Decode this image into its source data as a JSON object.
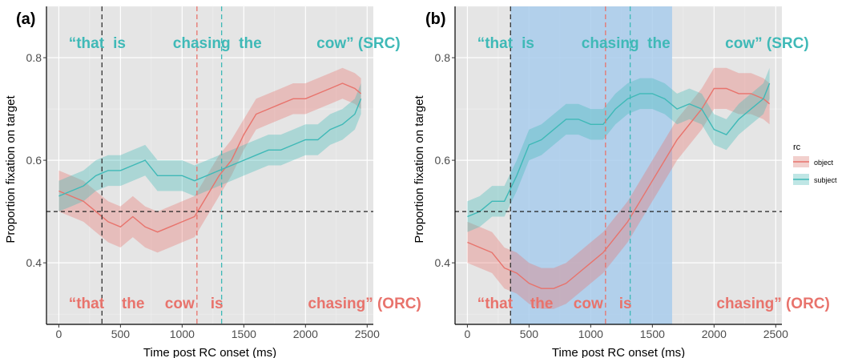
{
  "chart_data": [
    {
      "panel_label": "(a)",
      "type": "line",
      "xlabel": "Time post RC onset (ms)",
      "ylabel": "Proportion fixation on target",
      "xlim": [
        -100,
        2550
      ],
      "ylim": [
        0.28,
        0.9
      ],
      "xticks": [
        0,
        500,
        1000,
        1500,
        2000,
        2500
      ],
      "yticks": [
        0.4,
        0.6,
        0.8
      ],
      "reference_line_y": 0.5,
      "word_onsets": [
        {
          "x": 350,
          "color": "#333333"
        },
        {
          "x": 1120,
          "color": "#e8736c"
        },
        {
          "x": 1320,
          "color": "#3fb9b7"
        }
      ],
      "shaded_region": null,
      "top_words": [
        {
          "text": "“that",
          "x": 80
        },
        {
          "text": "is",
          "x": 440
        },
        {
          "text": "chasing",
          "x": 925
        },
        {
          "text": "the",
          "x": 1460
        },
        {
          "text": "cow” (SRC)",
          "x": 2090
        }
      ],
      "bottom_words": [
        {
          "text": "“that",
          "x": 80
        },
        {
          "text": "the",
          "x": 510
        },
        {
          "text": "cow",
          "x": 860
        },
        {
          "text": "is",
          "x": 1230
        },
        {
          "text": "chasing” (ORC)",
          "x": 2020
        }
      ],
      "series": [
        {
          "name": "object",
          "color": "#e8736c",
          "x": [
            0,
            100,
            200,
            300,
            400,
            500,
            600,
            700,
            800,
            900,
            1000,
            1100,
            1200,
            1300,
            1400,
            1500,
            1600,
            1700,
            1800,
            1900,
            2000,
            2100,
            2200,
            2300,
            2400,
            2450
          ],
          "y": [
            0.54,
            0.53,
            0.52,
            0.5,
            0.48,
            0.47,
            0.49,
            0.47,
            0.46,
            0.47,
            0.48,
            0.49,
            0.53,
            0.57,
            0.6,
            0.65,
            0.69,
            0.7,
            0.71,
            0.72,
            0.72,
            0.73,
            0.74,
            0.75,
            0.74,
            0.73
          ],
          "lower": [
            0.5,
            0.49,
            0.48,
            0.46,
            0.44,
            0.43,
            0.45,
            0.43,
            0.42,
            0.43,
            0.44,
            0.45,
            0.49,
            0.53,
            0.57,
            0.62,
            0.66,
            0.67,
            0.68,
            0.69,
            0.69,
            0.7,
            0.71,
            0.72,
            0.71,
            0.7
          ],
          "upper": [
            0.58,
            0.57,
            0.56,
            0.54,
            0.52,
            0.51,
            0.53,
            0.51,
            0.5,
            0.51,
            0.52,
            0.53,
            0.57,
            0.61,
            0.64,
            0.68,
            0.72,
            0.73,
            0.74,
            0.75,
            0.75,
            0.76,
            0.77,
            0.78,
            0.77,
            0.76
          ]
        },
        {
          "name": "subject",
          "color": "#3fb9b7",
          "x": [
            0,
            100,
            200,
            300,
            400,
            500,
            600,
            700,
            800,
            900,
            1000,
            1100,
            1200,
            1300,
            1400,
            1500,
            1600,
            1700,
            1800,
            1900,
            2000,
            2100,
            2200,
            2300,
            2400,
            2450
          ],
          "y": [
            0.53,
            0.54,
            0.55,
            0.57,
            0.58,
            0.58,
            0.59,
            0.6,
            0.57,
            0.57,
            0.57,
            0.56,
            0.57,
            0.58,
            0.59,
            0.6,
            0.61,
            0.62,
            0.62,
            0.63,
            0.64,
            0.64,
            0.66,
            0.67,
            0.69,
            0.72
          ],
          "lower": [
            0.5,
            0.51,
            0.52,
            0.54,
            0.55,
            0.55,
            0.56,
            0.57,
            0.54,
            0.54,
            0.54,
            0.53,
            0.54,
            0.55,
            0.56,
            0.57,
            0.58,
            0.59,
            0.59,
            0.6,
            0.61,
            0.61,
            0.63,
            0.64,
            0.66,
            0.69
          ],
          "upper": [
            0.56,
            0.57,
            0.58,
            0.6,
            0.61,
            0.61,
            0.62,
            0.63,
            0.6,
            0.6,
            0.6,
            0.59,
            0.6,
            0.61,
            0.62,
            0.63,
            0.64,
            0.65,
            0.65,
            0.66,
            0.67,
            0.67,
            0.69,
            0.7,
            0.72,
            0.75
          ]
        }
      ]
    },
    {
      "panel_label": "(b)",
      "type": "line",
      "xlabel": "Time post RC onset (ms)",
      "ylabel": "Proportion fixation on target",
      "xlim": [
        -100,
        2550
      ],
      "ylim": [
        0.28,
        0.9
      ],
      "xticks": [
        0,
        500,
        1000,
        1500,
        2000,
        2500
      ],
      "yticks": [
        0.4,
        0.6,
        0.8
      ],
      "reference_line_y": 0.5,
      "word_onsets": [
        {
          "x": 350,
          "color": "#333333"
        },
        {
          "x": 1120,
          "color": "#e8736c"
        },
        {
          "x": 1320,
          "color": "#3fb9b7"
        }
      ],
      "shaded_region": {
        "x0": 350,
        "x1": 1660,
        "color": "#a9ccec"
      },
      "top_words": [
        {
          "text": "“that",
          "x": 80
        },
        {
          "text": "is",
          "x": 440
        },
        {
          "text": "chasing",
          "x": 925
        },
        {
          "text": "the",
          "x": 1460
        },
        {
          "text": "cow” (SRC)",
          "x": 2090
        }
      ],
      "bottom_words": [
        {
          "text": "“that",
          "x": 80
        },
        {
          "text": "the",
          "x": 510
        },
        {
          "text": "cow",
          "x": 860
        },
        {
          "text": "is",
          "x": 1230
        },
        {
          "text": "chasing” (ORC)",
          "x": 2020
        }
      ],
      "series": [
        {
          "name": "object",
          "color": "#e8736c",
          "x": [
            0,
            100,
            200,
            300,
            400,
            500,
            600,
            700,
            800,
            900,
            1000,
            1100,
            1200,
            1300,
            1400,
            1500,
            1600,
            1700,
            1800,
            1900,
            2000,
            2100,
            2200,
            2300,
            2400,
            2450
          ],
          "y": [
            0.44,
            0.43,
            0.42,
            0.39,
            0.38,
            0.36,
            0.35,
            0.35,
            0.36,
            0.38,
            0.4,
            0.42,
            0.45,
            0.48,
            0.52,
            0.56,
            0.6,
            0.64,
            0.67,
            0.7,
            0.74,
            0.74,
            0.73,
            0.73,
            0.72,
            0.71
          ],
          "lower": [
            0.4,
            0.39,
            0.38,
            0.35,
            0.34,
            0.32,
            0.31,
            0.31,
            0.32,
            0.34,
            0.36,
            0.38,
            0.41,
            0.44,
            0.48,
            0.52,
            0.56,
            0.6,
            0.63,
            0.66,
            0.7,
            0.7,
            0.69,
            0.69,
            0.68,
            0.67
          ],
          "upper": [
            0.48,
            0.47,
            0.46,
            0.43,
            0.42,
            0.4,
            0.39,
            0.39,
            0.4,
            0.42,
            0.44,
            0.46,
            0.49,
            0.52,
            0.56,
            0.6,
            0.64,
            0.68,
            0.71,
            0.74,
            0.78,
            0.78,
            0.77,
            0.77,
            0.76,
            0.75
          ]
        },
        {
          "name": "subject",
          "color": "#3fb9b7",
          "x": [
            0,
            100,
            200,
            300,
            400,
            500,
            600,
            700,
            800,
            900,
            1000,
            1100,
            1200,
            1300,
            1400,
            1500,
            1600,
            1700,
            1800,
            1900,
            2000,
            2100,
            2200,
            2300,
            2400,
            2450
          ],
          "y": [
            0.49,
            0.5,
            0.52,
            0.52,
            0.57,
            0.63,
            0.64,
            0.66,
            0.68,
            0.68,
            0.67,
            0.67,
            0.7,
            0.72,
            0.73,
            0.73,
            0.72,
            0.7,
            0.71,
            0.7,
            0.66,
            0.65,
            0.68,
            0.7,
            0.72,
            0.75
          ],
          "lower": [
            0.46,
            0.47,
            0.49,
            0.49,
            0.54,
            0.6,
            0.61,
            0.63,
            0.65,
            0.65,
            0.64,
            0.64,
            0.67,
            0.69,
            0.7,
            0.7,
            0.69,
            0.67,
            0.68,
            0.67,
            0.63,
            0.62,
            0.65,
            0.67,
            0.69,
            0.72
          ],
          "upper": [
            0.52,
            0.53,
            0.55,
            0.55,
            0.6,
            0.66,
            0.67,
            0.69,
            0.71,
            0.71,
            0.7,
            0.7,
            0.73,
            0.75,
            0.76,
            0.76,
            0.75,
            0.73,
            0.74,
            0.73,
            0.69,
            0.68,
            0.71,
            0.73,
            0.75,
            0.78
          ]
        }
      ]
    }
  ],
  "legend": {
    "title": "rc",
    "placement": "right",
    "entries": [
      {
        "label": "object",
        "color": "#e8736c"
      },
      {
        "label": "subject",
        "color": "#3fb9b7"
      }
    ]
  }
}
